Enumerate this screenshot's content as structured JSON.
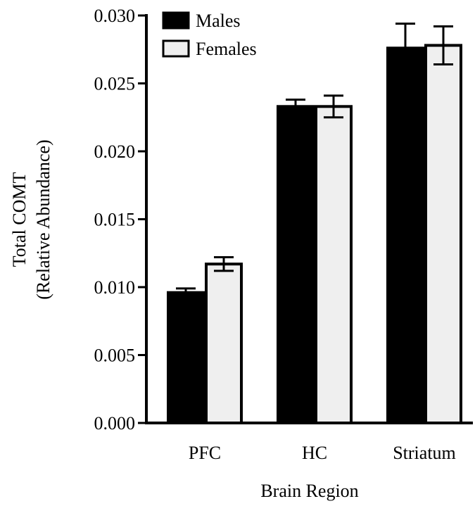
{
  "chart_data": {
    "type": "bar",
    "categories": [
      "PFC",
      "HC",
      "Striatum"
    ],
    "series": [
      {
        "name": "Males",
        "values": [
          0.0096,
          0.0233,
          0.0276
        ],
        "errors": [
          0.0003,
          0.0005,
          0.0018
        ],
        "color": "#000000"
      },
      {
        "name": "Females",
        "values": [
          0.0117,
          0.0233,
          0.0278
        ],
        "errors": [
          0.0005,
          0.0008,
          0.0014
        ],
        "color": "#efefef"
      }
    ],
    "xlabel": "Brain Region",
    "ylabel_lines": [
      "Total COMT",
      "(Relative Abundance)"
    ],
    "ylim": [
      0,
      0.03
    ],
    "yticks": [
      "0.000",
      "0.005",
      "0.010",
      "0.015",
      "0.020",
      "0.025",
      "0.030"
    ],
    "grid": false,
    "legend": "top-left"
  }
}
